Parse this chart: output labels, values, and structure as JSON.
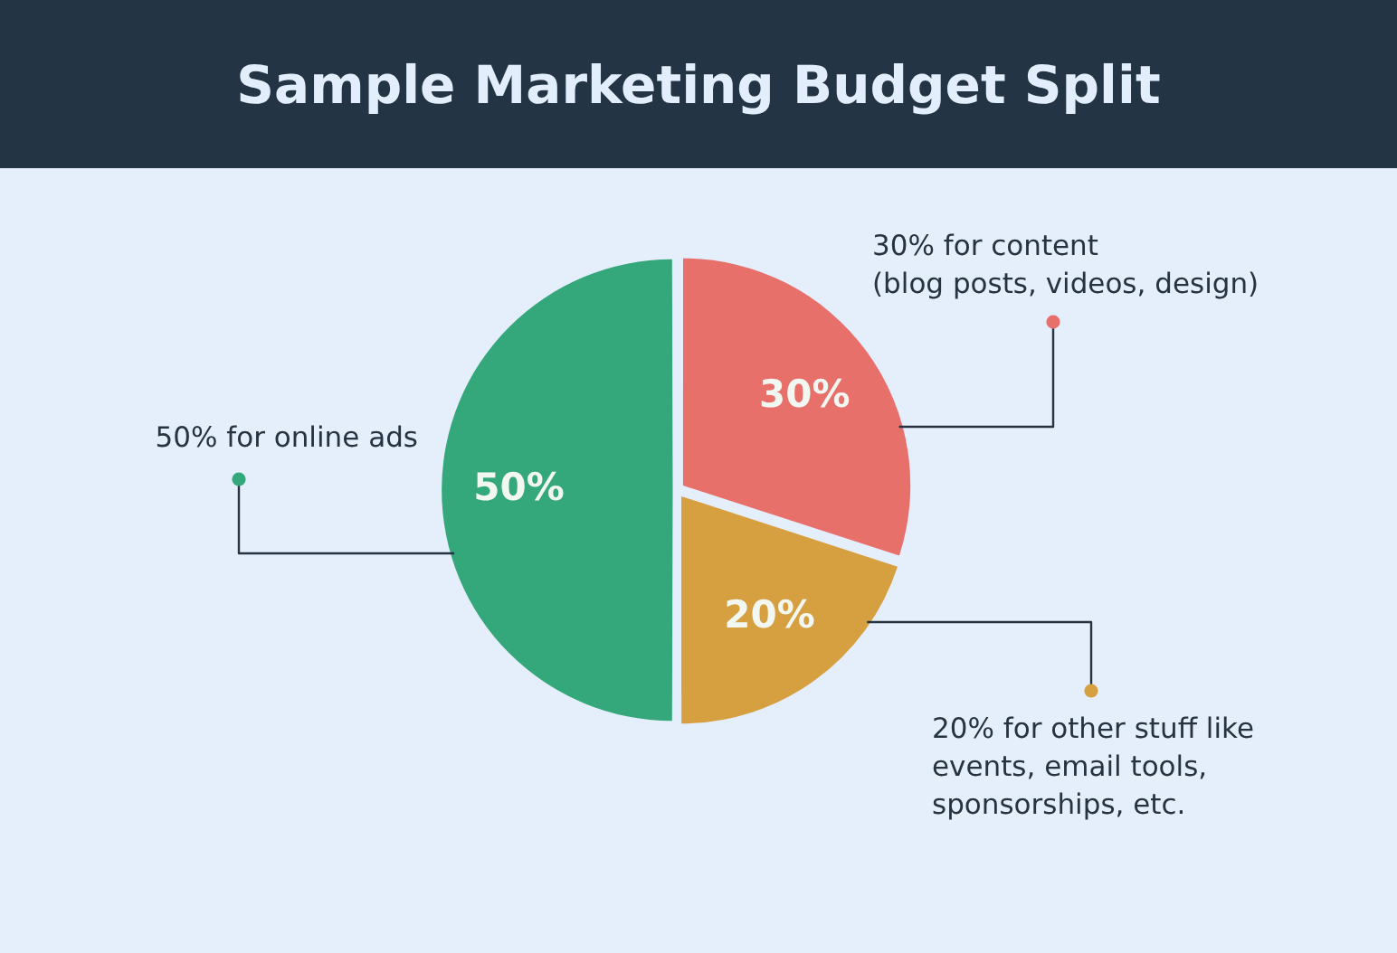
{
  "chart_data": {
    "type": "pie",
    "title": "Sample Marketing Budget Split",
    "categories": [
      "30% for content\n(blog posts, videos, design)",
      "20% for other stuff like\nevents, email tools,\nsponsorships, etc.",
      "50% for online ads"
    ],
    "values": [
      30,
      20,
      50
    ],
    "colors": [
      "#e8706b",
      "#d69f3f",
      "#34a77b"
    ],
    "value_labels": [
      "30%",
      "20%",
      "50%"
    ]
  }
}
